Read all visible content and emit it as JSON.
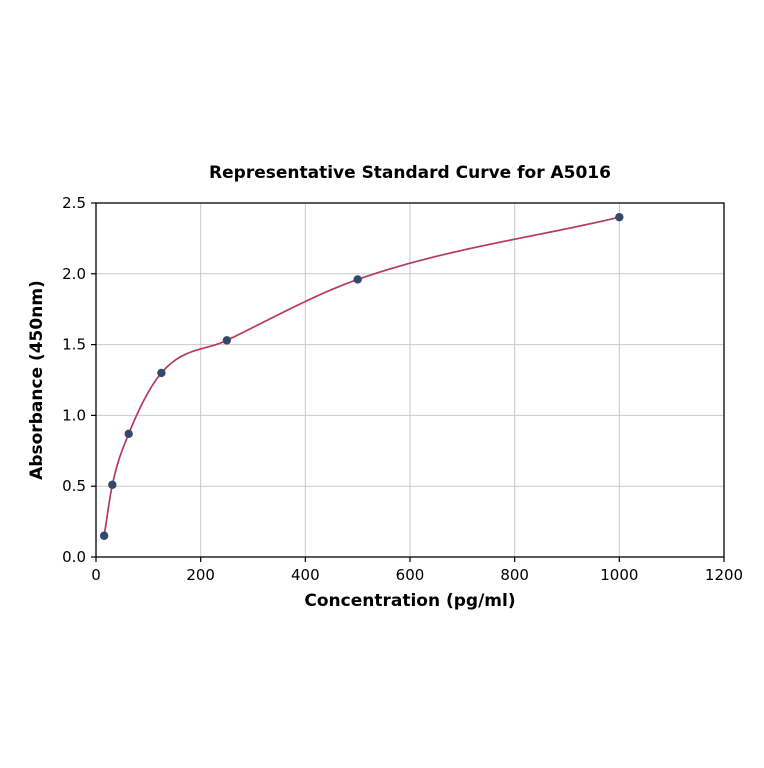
{
  "chart_data": {
    "type": "scatter",
    "title": "Representative Standard Curve for A5016",
    "xlabel": "Concentration (pg/ml)",
    "ylabel": "Absorbance (450nm)",
    "xlim": [
      0,
      1200
    ],
    "ylim": [
      0.0,
      2.5
    ],
    "x_ticks": [
      0,
      200,
      400,
      600,
      800,
      1000,
      1200
    ],
    "x_tick_labels": [
      "0",
      "200",
      "400",
      "600",
      "800",
      "1000",
      "1200"
    ],
    "y_ticks": [
      0.0,
      0.5,
      1.0,
      1.5,
      2.0,
      2.5
    ],
    "y_tick_labels": [
      "0.0",
      "0.5",
      "1.0",
      "1.5",
      "2.0",
      "2.5"
    ],
    "grid": true,
    "legend": "none",
    "points": {
      "x": [
        15.6,
        31.2,
        62.5,
        125,
        250,
        500,
        1000
      ],
      "y": [
        0.15,
        0.51,
        0.87,
        1.3,
        1.53,
        1.96,
        2.4
      ]
    },
    "curve_color": "#b43a60",
    "marker_color": "#33486b",
    "grid_color": "#c9c9c9",
    "axis_color": "#000000",
    "background_color": "#ffffff"
  }
}
